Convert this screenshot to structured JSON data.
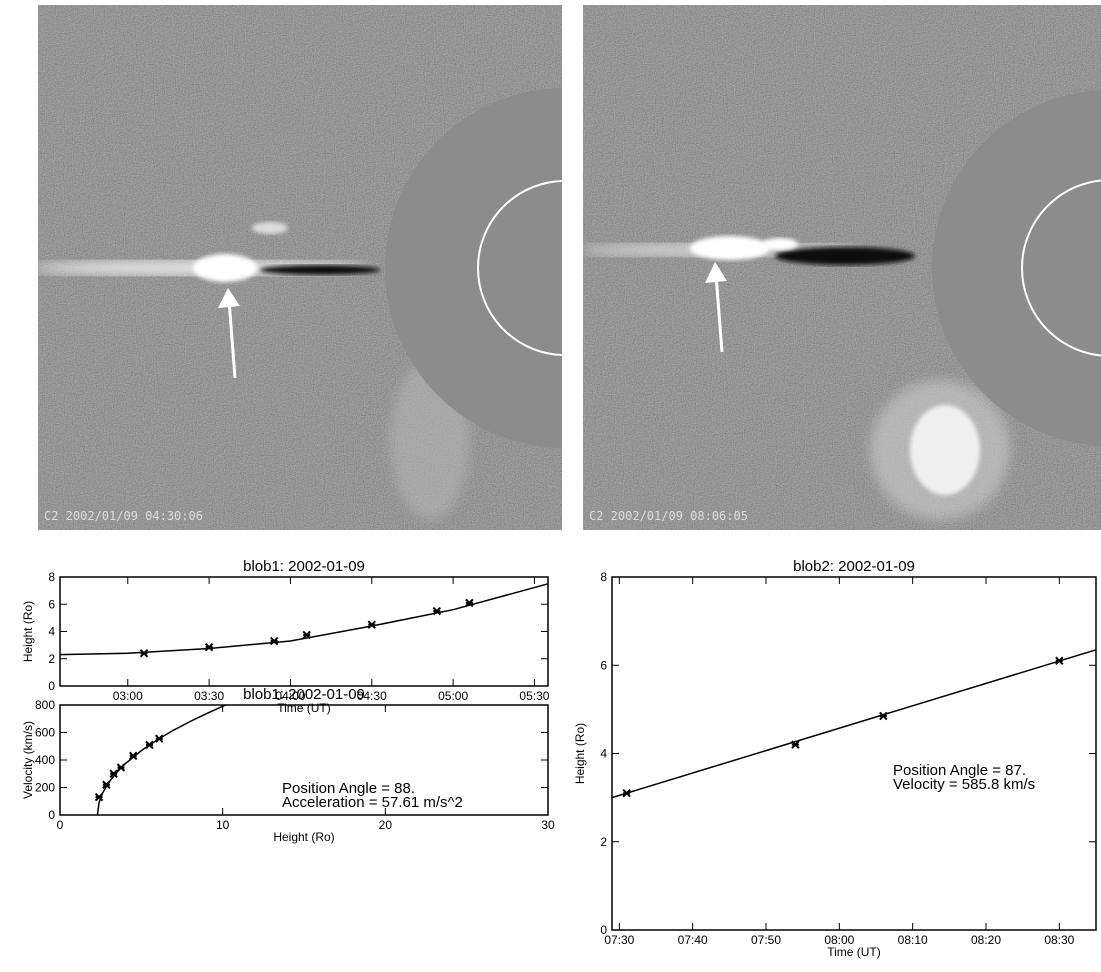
{
  "images": [
    {
      "label": "C2 2002/01/09 04:30:06"
    },
    {
      "label": "C2 2002/01/09 08:06:05"
    }
  ],
  "chart_data": [
    {
      "type": "line",
      "title": "blob1: 2002-01-09",
      "x_label": "Time (UT)",
      "y_label": "Height (Ro)",
      "xlim": [
        "02:35",
        "05:35"
      ],
      "xticks": [
        "03:00",
        "03:30",
        "04:00",
        "04:30",
        "05:00",
        "05:30"
      ],
      "ylim": [
        0,
        8
      ],
      "yticks": [
        0,
        2,
        4,
        6,
        8
      ],
      "series": [
        {
          "style": "markers",
          "color": "#000",
          "x": [
            "03:06",
            "03:30",
            "03:54",
            "04:06",
            "04:30",
            "04:54",
            "05:06"
          ],
          "values": [
            2.4,
            2.85,
            3.3,
            3.75,
            4.5,
            5.5,
            6.1
          ]
        },
        {
          "style": "line",
          "color": "#000",
          "x": [
            "02:35",
            "03:00",
            "03:30",
            "04:00",
            "04:30",
            "05:00",
            "05:35"
          ],
          "values": [
            2.3,
            2.4,
            2.75,
            3.3,
            4.4,
            5.6,
            7.5
          ]
        }
      ]
    },
    {
      "type": "scatter",
      "title": "blob1: 2002-01-09",
      "x_label": "Height (Ro)",
      "y_label": "Velocity (km/s)",
      "xlim": [
        0,
        30
      ],
      "xticks": [
        0,
        10,
        20,
        30
      ],
      "ylim": [
        0,
        800
      ],
      "yticks": [
        0,
        200,
        400,
        600,
        800
      ],
      "annotations": [
        "Position Angle =   88.",
        "Acceleration =  57.61 m/s^2"
      ],
      "series": [
        {
          "style": "markers",
          "color": "#000",
          "x": [
            2.4,
            2.85,
            3.3,
            3.75,
            4.5,
            5.5,
            6.1
          ],
          "values": [
            130,
            220,
            300,
            345,
            430,
            510,
            555
          ]
        },
        {
          "style": "line",
          "color": "#000",
          "x": [
            2.3,
            2.4,
            2.6,
            3,
            3.5,
            4,
            5,
            6,
            7,
            8,
            9,
            10.2
          ],
          "values": [
            0,
            90,
            156,
            238,
            312,
            372,
            468,
            548,
            618,
            680,
            737,
            801
          ]
        }
      ]
    },
    {
      "type": "line",
      "title": "blob2: 2002-01-09",
      "x_label": "Time (UT)",
      "y_label": "Height (Ro)",
      "xlim": [
        "07:29",
        "08:35"
      ],
      "xticks": [
        "07:30",
        "07:40",
        "07:50",
        "08:00",
        "08:10",
        "08:20",
        "08:30"
      ],
      "ylim": [
        0,
        8
      ],
      "yticks": [
        0,
        2,
        4,
        6,
        8
      ],
      "annotations": [
        "Position Angle =   87.",
        "Velocity =  585.8 km/s"
      ],
      "series": [
        {
          "style": "markers",
          "color": "#000",
          "x": [
            "07:31",
            "07:54",
            "08:06",
            "08:30"
          ],
          "values": [
            3.1,
            4.2,
            4.85,
            6.1
          ]
        },
        {
          "style": "line",
          "color": "#000",
          "x": [
            "07:29",
            "08:35"
          ],
          "values": [
            3.0,
            6.35
          ]
        }
      ]
    }
  ]
}
